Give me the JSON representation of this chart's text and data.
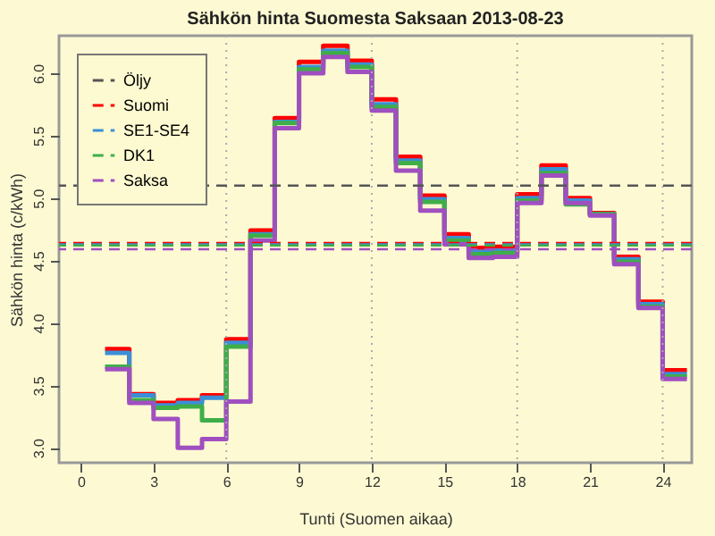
{
  "chart_data": {
    "type": "step",
    "title": "Sähkön hinta Suomesta Saksaan 2013-08-23",
    "xlabel": "Tunti (Suomen aikaa)",
    "ylabel": "Sähkön hinta (c/kWh)",
    "x": [
      1,
      2,
      3,
      4,
      5,
      6,
      7,
      8,
      9,
      10,
      11,
      12,
      13,
      14,
      15,
      16,
      17,
      18,
      19,
      20,
      21,
      22,
      23,
      24,
      25
    ],
    "series": [
      {
        "name": "Suomi",
        "color": "#ff0000",
        "values": [
          3.79,
          3.43,
          3.36,
          3.38,
          3.42,
          3.87,
          4.74,
          5.64,
          6.09,
          6.22,
          6.1,
          5.79,
          5.33,
          5.02,
          4.71,
          4.6,
          4.61,
          5.03,
          5.26,
          5.0,
          4.88,
          4.53,
          4.17,
          3.62,
          3.62
        ]
      },
      {
        "name": "SE1-SE4",
        "color": "#3b8fd6",
        "values": [
          3.76,
          3.42,
          3.34,
          3.36,
          3.4,
          3.84,
          4.71,
          5.61,
          6.05,
          6.18,
          6.07,
          5.75,
          5.3,
          4.99,
          4.68,
          4.57,
          4.58,
          5.0,
          5.23,
          4.98,
          4.87,
          4.51,
          4.15,
          3.59,
          3.59
        ]
      },
      {
        "name": "DK1",
        "color": "#3fae49",
        "values": [
          3.65,
          3.38,
          3.32,
          3.33,
          3.22,
          3.81,
          4.7,
          5.6,
          6.03,
          6.16,
          6.05,
          5.73,
          5.28,
          4.97,
          4.66,
          4.55,
          4.56,
          4.98,
          5.2,
          4.95,
          4.87,
          4.49,
          4.13,
          3.57,
          3.57
        ]
      },
      {
        "name": "Saksa",
        "color": "#a04fc0",
        "values": [
          3.63,
          3.36,
          3.23,
          3.0,
          3.07,
          3.37,
          4.66,
          5.56,
          6.0,
          6.13,
          6.01,
          5.7,
          5.22,
          4.9,
          4.63,
          4.52,
          4.53,
          4.96,
          5.18,
          4.96,
          4.86,
          4.47,
          4.12,
          3.55,
          3.55
        ]
      }
    ],
    "line_style": "solid",
    "ref_lines": [
      {
        "axis": "y",
        "value": 5.1,
        "label": "Öljy",
        "color": "#555555",
        "line_style": "dashed"
      },
      {
        "axis": "y",
        "value": 4.64,
        "color": "#ff0000",
        "line_style": "dashed"
      },
      {
        "axis": "y",
        "value": 4.63,
        "color": "#3b8fd6",
        "line_style": "dashed"
      },
      {
        "axis": "y",
        "value": 4.62,
        "color": "#3fae49",
        "line_style": "dashed"
      },
      {
        "axis": "y",
        "value": 4.59,
        "color": "#a04fc0",
        "line_style": "dashed"
      },
      {
        "axis": "x",
        "value": 6,
        "color": "#aaaaaa",
        "line_style": "dotted"
      },
      {
        "axis": "x",
        "value": 12,
        "color": "#aaaaaa",
        "line_style": "dotted"
      },
      {
        "axis": "x",
        "value": 18,
        "color": "#aaaaaa",
        "line_style": "dotted"
      },
      {
        "axis": "x",
        "value": 24,
        "color": "#aaaaaa",
        "line_style": "dotted"
      }
    ],
    "xlim": [
      -0.9,
      25.2
    ],
    "ylim": [
      2.88,
      6.3
    ],
    "xticks": [
      0,
      3,
      6,
      9,
      12,
      15,
      18,
      21,
      24
    ],
    "yticks": [
      {
        "value": 3,
        "label": "3.0"
      },
      {
        "value": 3.5,
        "label": "3.5"
      },
      {
        "value": 4,
        "label": "4.0"
      },
      {
        "value": 4.5,
        "label": "4.5"
      },
      {
        "value": 5,
        "label": "5.0"
      },
      {
        "value": 5.5,
        "label": "5.5"
      },
      {
        "value": 6,
        "label": "6.0"
      }
    ],
    "grid": false,
    "legend": "top left"
  }
}
